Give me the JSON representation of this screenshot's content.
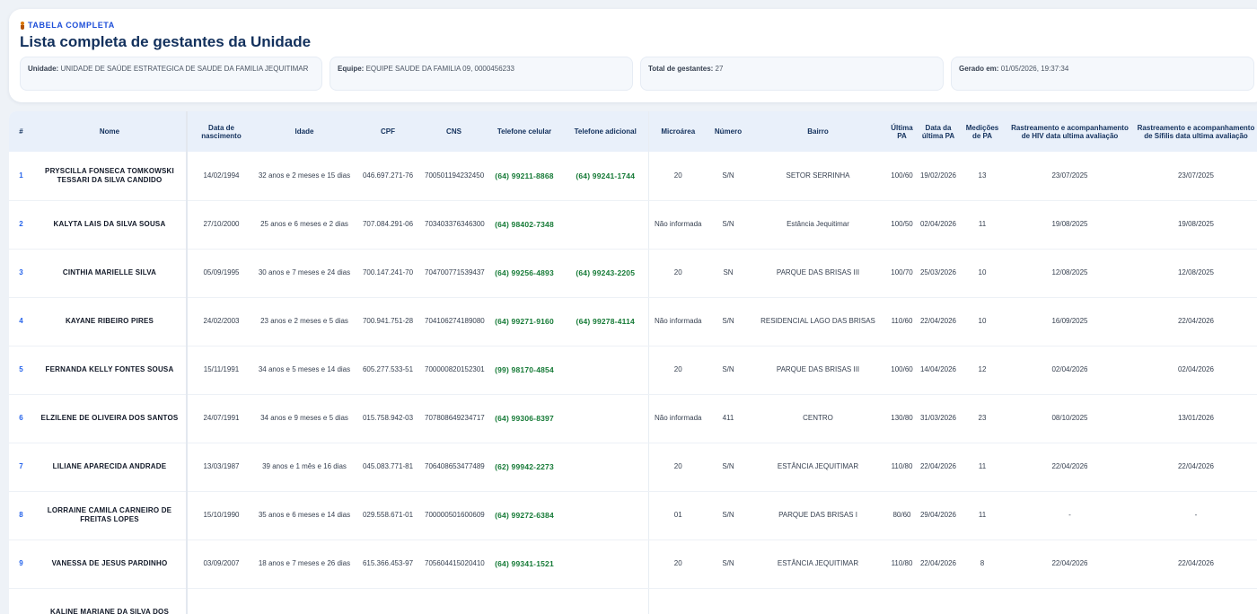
{
  "header": {
    "eyebrow": "TABELA COMPLETA",
    "title": "Lista completa de gestantes da Unidade",
    "unidade_label": "Unidade:",
    "unidade_value": "UNIDADE DE SAÚDE ESTRATEGICA DE SAUDE DA FAMILIA JEQUITIMAR",
    "equipe_label": "Equipe:",
    "equipe_value": "EQUIPE SAUDE DA FAMILIA 09, 0000456233",
    "total_label": "Total de gestantes:",
    "total_value": "27",
    "gerado_label": "Gerado em:",
    "gerado_value": "01/05/2026, 19:37:34"
  },
  "table": {
    "columns": [
      "#",
      "Nome",
      "Data de nascimento",
      "Idade",
      "CPF",
      "CNS",
      "Telefone celular",
      "Telefone adicional",
      "Microárea",
      "Número",
      "Bairro",
      "Última PA",
      "Data da última PA",
      "Medições de PA",
      "Rastreamento e acompanhamento de HIV data ultima avaliação",
      "Rastreamento e acompanhamento de Sífilis data ultima avaliação"
    ],
    "rows": [
      {
        "n": "1",
        "nome": "PRYSCILLA FONSECA TOMKOWSKI TESSARI DA SILVA CANDIDO",
        "nasc": "14/02/1994",
        "idade": "32 anos e 2 meses e 15 dias",
        "cpf": "046.697.271-76",
        "cns": "700501194232450",
        "cel": "(64) 99211-8868",
        "adic": "(64) 99241-1744",
        "micro": "20",
        "numero": "S/N",
        "bairro": "SETOR SERRINHA",
        "pa": "100/60",
        "data_pa": "19/02/2026",
        "med": "13",
        "hiv": "23/07/2025",
        "sifilis": "23/07/2025"
      },
      {
        "n": "2",
        "nome": "KALYTA LAIS DA SILVA SOUSA",
        "nasc": "27/10/2000",
        "idade": "25 anos e 6 meses e 2 dias",
        "cpf": "707.084.291-06",
        "cns": "703403376346300",
        "cel": "(64) 98402-7348",
        "adic": "",
        "micro": "Não informada",
        "numero": "S/N",
        "bairro": "Estância Jequitimar",
        "pa": "100/50",
        "data_pa": "02/04/2026",
        "med": "11",
        "hiv": "19/08/2025",
        "sifilis": "19/08/2025"
      },
      {
        "n": "3",
        "nome": "CINTHIA MARIELLE SILVA",
        "nasc": "05/09/1995",
        "idade": "30 anos e 7 meses e 24 dias",
        "cpf": "700.147.241-70",
        "cns": "704700771539437",
        "cel": "(64) 99256-4893",
        "adic": "(64) 99243-2205",
        "micro": "20",
        "numero": "SN",
        "bairro": "PARQUE DAS BRISAS III",
        "pa": "100/70",
        "data_pa": "25/03/2026",
        "med": "10",
        "hiv": "12/08/2025",
        "sifilis": "12/08/2025"
      },
      {
        "n": "4",
        "nome": "KAYANE RIBEIRO PIRES",
        "nasc": "24/02/2003",
        "idade": "23 anos e 2 meses e 5 dias",
        "cpf": "700.941.751-28",
        "cns": "704106274189080",
        "cel": "(64) 99271-9160",
        "adic": "(64) 99278-4114",
        "micro": "Não informada",
        "numero": "S/N",
        "bairro": "RESIDENCIAL LAGO DAS BRISAS",
        "pa": "110/60",
        "data_pa": "22/04/2026",
        "med": "10",
        "hiv": "16/09/2025",
        "sifilis": "22/04/2026"
      },
      {
        "n": "5",
        "nome": "FERNANDA KELLY FONTES SOUSA",
        "nasc": "15/11/1991",
        "idade": "34 anos e 5 meses e 14 dias",
        "cpf": "605.277.533-51",
        "cns": "700000820152301",
        "cel": "(99) 98170-4854",
        "adic": "",
        "micro": "20",
        "numero": "S/N",
        "bairro": "PARQUE DAS BRISAS III",
        "pa": "100/60",
        "data_pa": "14/04/2026",
        "med": "12",
        "hiv": "02/04/2026",
        "sifilis": "02/04/2026"
      },
      {
        "n": "6",
        "nome": "ELZILENE DE OLIVEIRA DOS SANTOS",
        "nasc": "24/07/1991",
        "idade": "34 anos e 9 meses e 5 dias",
        "cpf": "015.758.942-03",
        "cns": "707808649234717",
        "cel": "(64) 99306-8397",
        "adic": "",
        "micro": "Não informada",
        "numero": "411",
        "bairro": "CENTRO",
        "pa": "130/80",
        "data_pa": "31/03/2026",
        "med": "23",
        "hiv": "08/10/2025",
        "sifilis": "13/01/2026"
      },
      {
        "n": "7",
        "nome": "LILIANE APARECIDA ANDRADE",
        "nasc": "13/03/1987",
        "idade": "39 anos e 1 mês e 16 dias",
        "cpf": "045.083.771-81",
        "cns": "706408653477489",
        "cel": "(62) 99942-2273",
        "adic": "",
        "micro": "20",
        "numero": "S/N",
        "bairro": "ESTÂNCIA JEQUITIMAR",
        "pa": "110/80",
        "data_pa": "22/04/2026",
        "med": "11",
        "hiv": "22/04/2026",
        "sifilis": "22/04/2026"
      },
      {
        "n": "8",
        "nome": "LORRAINE CAMILA CARNEIRO DE FREITAS LOPES",
        "nasc": "15/10/1990",
        "idade": "35 anos e 6 meses e 14 dias",
        "cpf": "029.558.671-01",
        "cns": "700000501600609",
        "cel": "(64) 99272-6384",
        "adic": "",
        "micro": "01",
        "numero": "S/N",
        "bairro": "PARQUE DAS BRISAS I",
        "pa": "80/60",
        "data_pa": "29/04/2026",
        "med": "11",
        "hiv": "-",
        "sifilis": "-"
      },
      {
        "n": "9",
        "nome": "VANESSA DE JESUS PARDINHO",
        "nasc": "03/09/2007",
        "idade": "18 anos e 7 meses e 26 dias",
        "cpf": "615.366.453-97",
        "cns": "705604415020410",
        "cel": "(64) 99341-1521",
        "adic": "",
        "micro": "20",
        "numero": "S/N",
        "bairro": "ESTÂNCIA JEQUITIMAR",
        "pa": "110/80",
        "data_pa": "22/04/2026",
        "med": "8",
        "hiv": "22/04/2026",
        "sifilis": "22/04/2026"
      },
      {
        "n": "",
        "nome": "KALINE MARIANE DA SILVA DOS",
        "nasc": "",
        "idade": "",
        "cpf": "",
        "cns": "",
        "cel": "",
        "adic": "",
        "micro": "",
        "numero": "",
        "bairro": "",
        "pa": "",
        "data_pa": "",
        "med": "",
        "hiv": "",
        "sifilis": ""
      }
    ]
  }
}
